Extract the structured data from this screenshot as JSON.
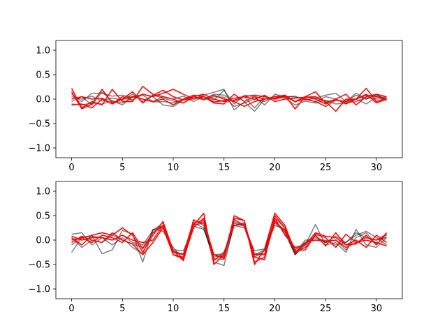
{
  "chart_data": [
    {
      "type": "line",
      "title": "",
      "xlabel": "",
      "ylabel": "",
      "xlim": [
        -1.55,
        32.55
      ],
      "ylim": [
        -1.2,
        1.2
      ],
      "xticks": [
        0,
        5,
        10,
        15,
        20,
        25,
        30
      ],
      "yticks": [
        -1.0,
        -0.5,
        0.0,
        0.5,
        1.0
      ],
      "ytick_labels": [
        "−1.0",
        "−0.5",
        "0.0",
        "0.5",
        "1.0"
      ],
      "grid": false,
      "series_colors": {
        "gray": "#000000",
        "red": "#ff0000"
      },
      "series": [
        {
          "color": "gray",
          "values": [
            0.1,
            -0.05,
            0.12,
            0.12,
            0.06,
            0.08,
            0.03,
            0.1,
            0.05,
            -0.12,
            -0.15,
            -0.02,
            0.0,
            0.08,
            0.14,
            0.2,
            -0.22,
            -0.06,
            -0.25,
            0.0,
            0.02,
            0.06,
            0.04,
            0.02,
            -0.06,
            0.05,
            0.0,
            -0.08,
            -0.05,
            0.04,
            0.0,
            0.02
          ]
        },
        {
          "color": "gray",
          "values": [
            -0.1,
            -0.12,
            -0.08,
            -0.1,
            -0.03,
            -0.12,
            0.05,
            0.0,
            -0.06,
            -0.05,
            -0.08,
            0.0,
            0.05,
            -0.02,
            0.05,
            0.04,
            -0.15,
            -0.08,
            0.0,
            -0.05,
            0.06,
            0.02,
            -0.12,
            -0.04,
            -0.08,
            -0.02,
            -0.1,
            -0.08,
            0.0,
            -0.1,
            0.04,
            0.04
          ]
        },
        {
          "color": "gray",
          "values": [
            0.05,
            0.0,
            0.06,
            -0.04,
            0.02,
            -0.02,
            0.1,
            -0.05,
            0.08,
            0.02,
            -0.04,
            -0.08,
            0.05,
            0.0,
            0.1,
            0.08,
            -0.05,
            0.05,
            -0.18,
            0.05,
            0.0,
            0.08,
            -0.06,
            0.05,
            0.02,
            -0.05,
            -0.02,
            -0.05,
            0.08,
            0.0,
            0.1,
            -0.04
          ]
        },
        {
          "color": "gray",
          "values": [
            -0.05,
            0.05,
            -0.12,
            0.15,
            -0.05,
            -0.08,
            0.05,
            0.08,
            -0.05,
            0.05,
            0.0,
            0.06,
            -0.05,
            0.05,
            -0.02,
            0.18,
            -0.1,
            0.08,
            0.05,
            -0.12,
            0.1,
            0.04,
            0.06,
            -0.02,
            0.02,
            0.08,
            0.12,
            -0.05,
            0.12,
            0.0,
            0.08,
            0.0
          ]
        },
        {
          "color": "red",
          "values": [
            0.22,
            -0.18,
            -0.05,
            -0.12,
            0.2,
            -0.05,
            -0.05,
            0.26,
            0.1,
            0.05,
            0.0,
            -0.08,
            0.05,
            0.1,
            0.0,
            -0.05,
            -0.02,
            0.05,
            0.0,
            0.08,
            -0.05,
            0.0,
            0.02,
            0.04,
            0.05,
            -0.05,
            -0.25,
            0.0,
            0.0,
            0.22,
            -0.05,
            0.02
          ]
        },
        {
          "color": "red",
          "values": [
            -0.12,
            -0.1,
            -0.18,
            0.0,
            -0.1,
            0.0,
            0.15,
            -0.08,
            0.08,
            0.18,
            0.05,
            -0.02,
            0.05,
            0.0,
            0.08,
            0.0,
            -0.05,
            -0.15,
            -0.05,
            0.0,
            0.05,
            0.08,
            -0.2,
            0.05,
            0.0,
            -0.1,
            0.0,
            -0.1,
            0.0,
            0.1,
            -0.08,
            0.0
          ]
        },
        {
          "color": "red",
          "values": [
            0.15,
            -0.2,
            -0.1,
            0.2,
            -0.08,
            0.0,
            0.05,
            0.0,
            -0.05,
            0.0,
            -0.12,
            0.0,
            0.08,
            0.05,
            -0.06,
            -0.03,
            0.02,
            0.05,
            0.08,
            0.05,
            0.0,
            0.05,
            -0.05,
            0.05,
            0.15,
            -0.08,
            0.0,
            0.1,
            -0.12,
            0.05,
            0.1,
            0.05
          ]
        },
        {
          "color": "red",
          "values": [
            0.0,
            0.05,
            0.0,
            0.02,
            -0.1,
            0.05,
            -0.02,
            0.1,
            0.05,
            0.12,
            0.2,
            0.1,
            0.0,
            0.05,
            -0.08,
            -0.1,
            0.1,
            -0.05,
            0.05,
            0.0,
            0.02,
            0.08,
            -0.05,
            0.0,
            -0.05,
            -0.15,
            -0.02,
            -0.05,
            0.0,
            0.08,
            0.05,
            0.0
          ]
        }
      ]
    },
    {
      "type": "line",
      "title": "",
      "xlabel": "",
      "ylabel": "",
      "xlim": [
        -1.55,
        32.55
      ],
      "ylim": [
        -1.2,
        1.2
      ],
      "xticks": [
        0,
        5,
        10,
        15,
        20,
        25,
        30
      ],
      "yticks": [
        -1.0,
        -0.5,
        0.0,
        0.5,
        1.0
      ],
      "ytick_labels": [
        "−1.0",
        "−0.5",
        "0.0",
        "0.5",
        "1.0"
      ],
      "grid": false,
      "series_colors": {
        "gray": "#000000",
        "red": "#ff0000"
      },
      "series": [
        {
          "color": "gray",
          "values": [
            -0.25,
            0.05,
            0.1,
            -0.28,
            -0.2,
            0.2,
            0.12,
            -0.45,
            0.22,
            0.18,
            -0.15,
            -0.4,
            0.42,
            0.3,
            -0.45,
            -0.52,
            0.35,
            0.28,
            -0.22,
            -0.18,
            0.4,
            0.15,
            -0.3,
            -0.1,
            0.32,
            -0.1,
            -0.05,
            -0.25,
            0.22,
            -0.1,
            -0.15,
            0.05
          ]
        },
        {
          "color": "gray",
          "values": [
            0.12,
            0.15,
            -0.1,
            0.05,
            0.0,
            0.1,
            -0.05,
            -0.1,
            0.2,
            0.3,
            -0.22,
            -0.3,
            0.35,
            0.25,
            -0.38,
            -0.4,
            0.3,
            0.32,
            -0.35,
            -0.22,
            0.45,
            0.25,
            -0.25,
            -0.08,
            0.05,
            -0.05,
            0.08,
            -0.05,
            0.1,
            0.18,
            0.05,
            -0.1
          ]
        },
        {
          "color": "gray",
          "values": [
            -0.1,
            0.05,
            0.08,
            0.05,
            -0.1,
            0.05,
            -0.15,
            -0.28,
            0.2,
            0.35,
            -0.25,
            -0.28,
            0.3,
            0.35,
            -0.35,
            -0.3,
            0.38,
            0.3,
            -0.28,
            -0.28,
            0.35,
            0.18,
            -0.3,
            -0.05,
            0.08,
            -0.05,
            0.0,
            -0.2,
            0.05,
            0.15,
            -0.08,
            0.1
          ]
        },
        {
          "color": "gray",
          "values": [
            0.05,
            -0.15,
            0.0,
            -0.05,
            0.1,
            0.0,
            -0.08,
            -0.15,
            0.15,
            0.28,
            -0.2,
            -0.22,
            0.28,
            0.22,
            -0.3,
            -0.28,
            0.3,
            0.25,
            -0.3,
            -0.2,
            0.3,
            0.22,
            -0.28,
            0.0,
            0.0,
            0.0,
            -0.1,
            -0.05,
            0.15,
            0.05,
            0.0,
            0.05
          ]
        },
        {
          "color": "red",
          "values": [
            0.05,
            -0.1,
            0.1,
            0.15,
            0.1,
            0.25,
            0.1,
            -0.25,
            0.1,
            0.38,
            -0.22,
            -0.42,
            0.3,
            0.55,
            -0.5,
            -0.3,
            0.45,
            0.4,
            -0.5,
            -0.18,
            0.55,
            0.3,
            -0.25,
            -0.15,
            0.1,
            -0.12,
            0.15,
            -0.1,
            0.0,
            -0.15,
            0.1,
            -0.05
          ]
        },
        {
          "color": "red",
          "values": [
            0.0,
            0.05,
            -0.05,
            0.1,
            0.05,
            -0.05,
            0.15,
            -0.18,
            0.15,
            0.3,
            -0.3,
            -0.35,
            0.35,
            0.4,
            -0.3,
            -0.38,
            0.5,
            0.4,
            -0.45,
            -0.35,
            0.38,
            0.2,
            -0.22,
            -0.2,
            0.12,
            0.05,
            -0.15,
            0.12,
            -0.05,
            0.05,
            0.0,
            0.12
          ]
        },
        {
          "color": "red",
          "values": [
            -0.05,
            0.08,
            0.0,
            -0.05,
            0.15,
            0.0,
            -0.08,
            -0.3,
            -0.05,
            0.25,
            -0.3,
            -0.38,
            0.25,
            0.45,
            -0.42,
            -0.25,
            0.3,
            0.35,
            -0.3,
            -0.3,
            0.45,
            0.1,
            -0.15,
            -0.1,
            0.15,
            0.08,
            0.05,
            -0.1,
            -0.08,
            0.1,
            -0.1,
            0.15
          ]
        },
        {
          "color": "red",
          "values": [
            0.08,
            0.0,
            0.05,
            0.05,
            0.0,
            0.1,
            0.0,
            -0.05,
            0.0,
            0.3,
            -0.25,
            -0.3,
            0.4,
            0.35,
            -0.3,
            -0.35,
            0.42,
            0.3,
            -0.35,
            -0.4,
            0.5,
            0.25,
            -0.2,
            -0.05,
            0.0,
            -0.02,
            0.0,
            -0.15,
            -0.05,
            0.0,
            -0.05,
            -0.12
          ]
        }
      ]
    }
  ]
}
